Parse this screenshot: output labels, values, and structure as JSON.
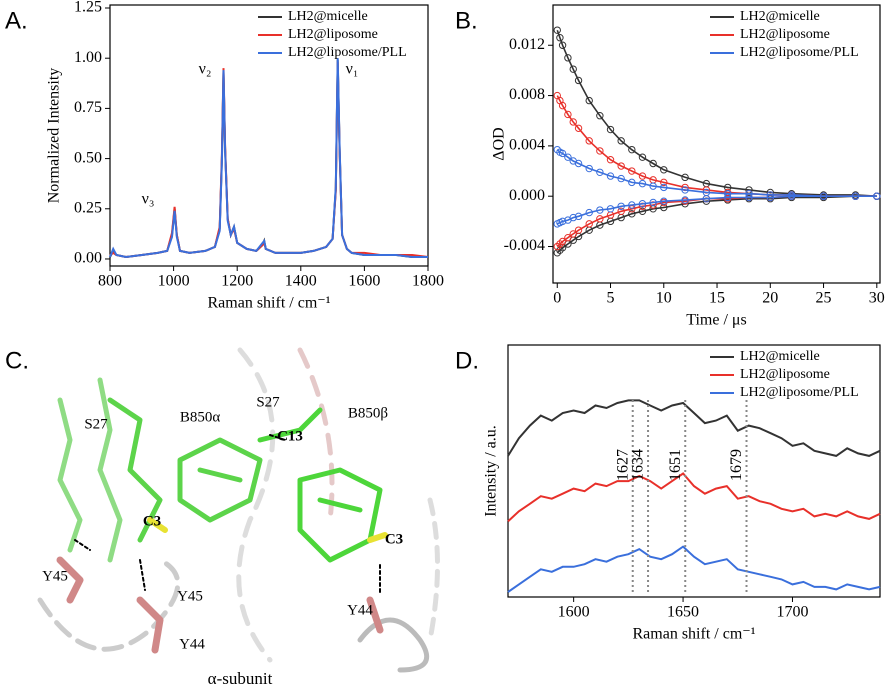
{
  "chart_data": [
    {
      "type": "line",
      "panel_label": "A.",
      "xlabel": "Raman shift / cm⁻¹",
      "ylabel": "Normalized Intensity",
      "x": [
        800,
        810,
        820,
        850,
        900,
        950,
        980,
        995,
        1003,
        1010,
        1020,
        1050,
        1100,
        1130,
        1145,
        1152,
        1157,
        1162,
        1170,
        1180,
        1190,
        1200,
        1230,
        1260,
        1280,
        1285,
        1290,
        1320,
        1360,
        1400,
        1440,
        1460,
        1480,
        1500,
        1510,
        1516,
        1522,
        1530,
        1545,
        1560,
        1600,
        1650,
        1700,
        1750,
        1800
      ],
      "series": [
        {
          "name": "LH2@micelle",
          "color": "#333333",
          "values": [
            0.01,
            0.04,
            0.02,
            0.01,
            0.02,
            0.03,
            0.04,
            0.12,
            0.25,
            0.12,
            0.04,
            0.03,
            0.04,
            0.06,
            0.15,
            0.5,
            0.93,
            0.55,
            0.2,
            0.12,
            0.16,
            0.08,
            0.05,
            0.04,
            0.07,
            0.09,
            0.05,
            0.03,
            0.03,
            0.03,
            0.04,
            0.05,
            0.06,
            0.1,
            0.35,
            0.99,
            0.55,
            0.12,
            0.05,
            0.03,
            0.02,
            0.02,
            0.02,
            0.01,
            0.01
          ]
        },
        {
          "name": "LH2@liposome",
          "color": "#e8302a",
          "values": [
            0.02,
            0.03,
            0.02,
            0.01,
            0.02,
            0.03,
            0.04,
            0.13,
            0.26,
            0.12,
            0.04,
            0.03,
            0.04,
            0.06,
            0.16,
            0.52,
            0.95,
            0.56,
            0.2,
            0.12,
            0.15,
            0.08,
            0.05,
            0.04,
            0.07,
            0.08,
            0.05,
            0.03,
            0.03,
            0.03,
            0.04,
            0.05,
            0.06,
            0.1,
            0.34,
            0.98,
            0.54,
            0.12,
            0.05,
            0.03,
            0.03,
            0.02,
            0.02,
            0.02,
            0.01
          ]
        },
        {
          "name": "LH2@liposome/PLL",
          "color": "#3a6fdc",
          "values": [
            0.01,
            0.05,
            0.02,
            0.01,
            0.02,
            0.03,
            0.04,
            0.11,
            0.24,
            0.11,
            0.04,
            0.03,
            0.04,
            0.06,
            0.14,
            0.49,
            0.94,
            0.54,
            0.19,
            0.12,
            0.16,
            0.08,
            0.05,
            0.04,
            0.08,
            0.09,
            0.05,
            0.03,
            0.03,
            0.03,
            0.04,
            0.05,
            0.06,
            0.1,
            0.36,
            1.0,
            0.56,
            0.12,
            0.05,
            0.03,
            0.02,
            0.02,
            0.02,
            0.01,
            0.01
          ]
        }
      ],
      "annotations": [
        "ν₃",
        "ν₂",
        "ν₁"
      ],
      "xlim": [
        800,
        1800
      ],
      "xticks": [
        800,
        1000,
        1200,
        1400,
        1600,
        1800
      ],
      "ylim": [
        -0.035,
        1.265
      ],
      "yticks": [
        {
          "value": 0,
          "label": "0.00"
        },
        0.25,
        {
          "value": 0.5,
          "label": "0.50"
        },
        0.75,
        {
          "value": 1,
          "label": "1.00"
        },
        1.25
      ],
      "legend": "upper right"
    },
    {
      "type": "scatter",
      "panel_label": "B.",
      "xlabel": "Time / μs",
      "ylabel": "ΔOD",
      "x": [
        0,
        0.25,
        0.5,
        1,
        1.5,
        2,
        3,
        4,
        5,
        6,
        7,
        8,
        9,
        10,
        12,
        14,
        16,
        18,
        20,
        22,
        25,
        28,
        30
      ],
      "series": [
        {
          "name": "LH2@micelle",
          "color": "#333333",
          "values": [
            0.0132,
            0.0126,
            0.012,
            0.011,
            0.0101,
            0.0092,
            0.0076,
            0.0064,
            0.0053,
            0.0044,
            0.0037,
            0.0031,
            0.0026,
            0.0021,
            0.0015,
            0.001,
            0.0007,
            0.0005,
            0.0003,
            0.0002,
            0.0001,
            0.0001,
            0
          ],
          "negative_values": [
            -0.0045,
            -0.0043,
            -0.0041,
            -0.0038,
            -0.0035,
            -0.0032,
            -0.0027,
            -0.0023,
            -0.002,
            -0.0017,
            -0.0014,
            -0.0012,
            -0.001,
            -0.0009,
            -0.0006,
            -0.0004,
            -0.0003,
            -0.0002,
            -0.0002,
            -0.0001,
            -0.0001,
            0,
            0
          ]
        },
        {
          "name": "LH2@liposome",
          "color": "#e8302a",
          "values": [
            0.008,
            0.0076,
            0.0072,
            0.0065,
            0.0059,
            0.0054,
            0.0044,
            0.0036,
            0.0029,
            0.0024,
            0.002,
            0.0016,
            0.0013,
            0.0011,
            0.0007,
            0.0005,
            0.0003,
            0.0002,
            0.0001,
            0.0001,
            0,
            0,
            0
          ],
          "negative_values": [
            -0.004,
            -0.0038,
            -0.0036,
            -0.0033,
            -0.003,
            -0.0027,
            -0.0022,
            -0.0018,
            -0.0015,
            -0.0012,
            -0.001,
            -0.0008,
            -0.0007,
            -0.0005,
            -0.0004,
            -0.0002,
            -0.0002,
            -0.0001,
            -0.0001,
            0,
            0,
            0,
            0
          ]
        },
        {
          "name": "LH2@liposome/PLL",
          "color": "#3a6fdc",
          "values": [
            0.0037,
            0.0035,
            0.0034,
            0.0031,
            0.0028,
            0.0026,
            0.0022,
            0.0019,
            0.0016,
            0.0014,
            0.0011,
            0.001,
            0.0008,
            0.0007,
            0.0005,
            0.0003,
            0.0002,
            0.0002,
            0.0001,
            0.0001,
            0,
            0,
            0
          ],
          "negative_values": [
            -0.0022,
            -0.0021,
            -0.002,
            -0.0019,
            -0.0017,
            -0.0016,
            -0.0013,
            -0.0011,
            -0.001,
            -0.0008,
            -0.0007,
            -0.0006,
            -0.0005,
            -0.0004,
            -0.0003,
            -0.0002,
            -0.0001,
            -0.0001,
            -0.0001,
            0,
            0,
            0,
            0
          ]
        }
      ],
      "xlim": [
        -0.4,
        30.3
      ],
      "xticks": [
        0,
        5,
        10,
        15,
        20,
        25,
        30
      ],
      "ylim": [
        -0.0069,
        0.0152
      ],
      "yticks": [
        -0.004,
        {
          "value": 0,
          "label": "0.000"
        },
        0.004,
        0.008,
        0.012
      ],
      "legend": "upper right"
    },
    {
      "type": "line",
      "panel_label": "D.",
      "xlabel": "Raman shift / cm⁻¹",
      "ylabel": "Intensity / a.u.",
      "x": [
        1570,
        1575,
        1580,
        1585,
        1590,
        1595,
        1600,
        1605,
        1610,
        1615,
        1620,
        1625,
        1630,
        1635,
        1640,
        1645,
        1650,
        1655,
        1660,
        1665,
        1670,
        1675,
        1680,
        1685,
        1690,
        1695,
        1700,
        1705,
        1710,
        1715,
        1720,
        1725,
        1730,
        1735,
        1740
      ],
      "series": [
        {
          "name": "LH2@micelle",
          "color": "#333333",
          "values": [
            5.6,
            6.3,
            6.8,
            7.2,
            7.0,
            7.3,
            7.4,
            7.3,
            7.6,
            7.5,
            7.7,
            7.8,
            7.8,
            7.6,
            7.4,
            7.6,
            7.7,
            7.3,
            6.9,
            7.0,
            7.2,
            6.6,
            6.8,
            6.7,
            6.5,
            6.3,
            6.0,
            6.1,
            5.8,
            5.7,
            5.6,
            5.9,
            5.7,
            5.6,
            5.8
          ]
        },
        {
          "name": "LH2@liposome",
          "color": "#e8302a",
          "values": [
            3.0,
            3.4,
            3.7,
            4.0,
            3.9,
            4.1,
            4.3,
            4.2,
            4.5,
            4.4,
            4.6,
            4.6,
            4.8,
            4.6,
            4.3,
            4.6,
            4.9,
            4.4,
            4.1,
            4.3,
            4.4,
            3.9,
            4.0,
            3.8,
            3.7,
            3.5,
            3.4,
            3.5,
            3.2,
            3.3,
            3.2,
            3.4,
            3.2,
            3.1,
            3.3
          ]
        },
        {
          "name": "LH2@liposome/PLL",
          "color": "#3a6fdc",
          "values": [
            0.2,
            0.5,
            0.8,
            1.1,
            1.0,
            1.2,
            1.2,
            1.3,
            1.5,
            1.4,
            1.6,
            1.7,
            1.9,
            1.6,
            1.5,
            1.7,
            2.0,
            1.6,
            1.3,
            1.4,
            1.5,
            1.1,
            1.0,
            0.9,
            0.8,
            0.7,
            0.5,
            0.6,
            0.4,
            0.4,
            0.3,
            0.5,
            0.4,
            0.3,
            0.4
          ]
        }
      ],
      "reference_lines": [
        1627,
        1634,
        1651,
        1679
      ],
      "xlim": [
        1570,
        1740
      ],
      "xticks": [
        1600,
        1650,
        1700
      ],
      "ylim": [
        0,
        10
      ],
      "legend": "upper right"
    }
  ],
  "panel_c": {
    "panel_label": "C.",
    "labels": [
      "S27",
      "B850α",
      "S27",
      "C13",
      "B850β",
      "C3",
      "C3",
      "Y45",
      "Y45",
      "Y44",
      "Y44",
      "α-subunit"
    ]
  }
}
